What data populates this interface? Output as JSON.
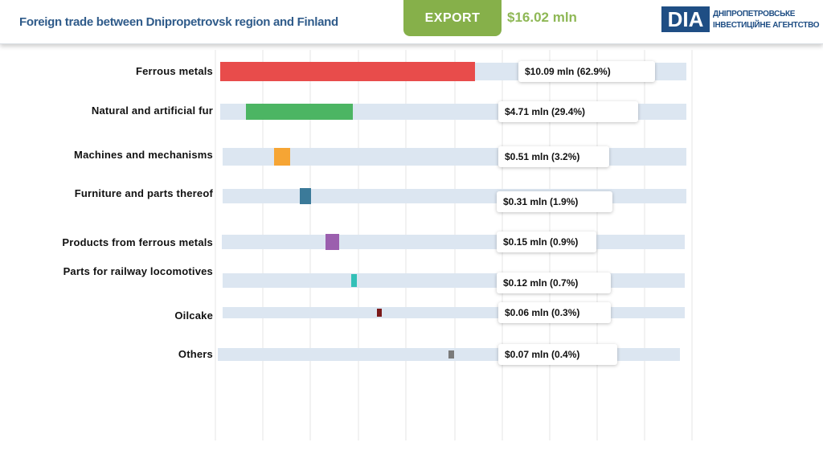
{
  "header": {
    "title": "Foreign trade between Dnipropetrovsk region and Finland",
    "export_label": "EXPORT",
    "total": "$16.02 mln",
    "logo_mark": "DIA",
    "logo_line1": "ДНІПРОПЕТРОВСЬКЕ",
    "logo_line2": "ІНВЕСТИЦІЙНЕ АГЕНТСТВО"
  },
  "colors": {
    "track": "#dce6f1",
    "grid": "#e6e6e6",
    "title": "#2f5b8a",
    "accent": "#86b04a"
  },
  "chart_data": {
    "type": "bar",
    "orientation": "horizontal",
    "total_mln": 16.02,
    "categories": [
      "Ferrous metals",
      "Natural and artificial fur",
      "Machines and mechanisms",
      "Furniture and parts thereof",
      "Products from ferrous metals",
      "Parts for railway locomotives",
      "Oilcake",
      "Others"
    ],
    "values": [
      10.09,
      4.71,
      0.51,
      0.31,
      0.15,
      0.12,
      0.06,
      0.07
    ],
    "shares_percent": [
      62.9,
      29.4,
      3.2,
      1.9,
      0.9,
      0.7,
      0.3,
      0.4
    ],
    "value_labels": [
      "$10.09 mln (62.9%)",
      "$4.71 mln (29.4%)",
      "$0.51 mln (3.2%)",
      "$0.31 mln (1.9%)",
      "$0.15 mln (0.9%)",
      "$0.12 mln (0.7%)",
      "$0.06 mln (0.3%)",
      "$0.07 mln (0.4%)"
    ],
    "bar_colors": [
      "#e84c4b",
      "#4cb563",
      "#f6a534",
      "#3b7a99",
      "#9b5fae",
      "#33c0b7",
      "#7b1a1a",
      "#7a7a7a"
    ],
    "grid": true,
    "legend": "none"
  }
}
